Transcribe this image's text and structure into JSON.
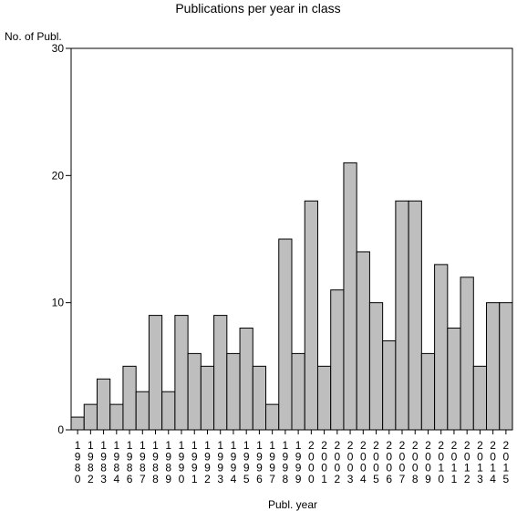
{
  "chart_data": {
    "type": "bar",
    "title": "Publications per year in class",
    "ylabel": "No. of Publ.",
    "xlabel": "Publ. year",
    "ylim": [
      0,
      30
    ],
    "yticks": [
      0,
      10,
      20,
      30
    ],
    "grid": false,
    "bar_color": "#bebebe",
    "categories": [
      "1980",
      "1982",
      "1983",
      "1984",
      "1986",
      "1987",
      "1988",
      "1989",
      "1990",
      "1991",
      "1992",
      "1993",
      "1994",
      "1995",
      "1996",
      "1997",
      "1998",
      "1999",
      "2000",
      "2001",
      "2002",
      "2003",
      "2004",
      "2005",
      "2006",
      "2007",
      "2008",
      "2009",
      "2010",
      "2011",
      "2012",
      "2013",
      "2014",
      "2015"
    ],
    "values": [
      1,
      2,
      4,
      2,
      5,
      3,
      9,
      3,
      9,
      6,
      5,
      9,
      6,
      8,
      5,
      2,
      15,
      6,
      18,
      5,
      11,
      21,
      14,
      10,
      7,
      18,
      18,
      6,
      13,
      8,
      12,
      5,
      10,
      10
    ]
  }
}
